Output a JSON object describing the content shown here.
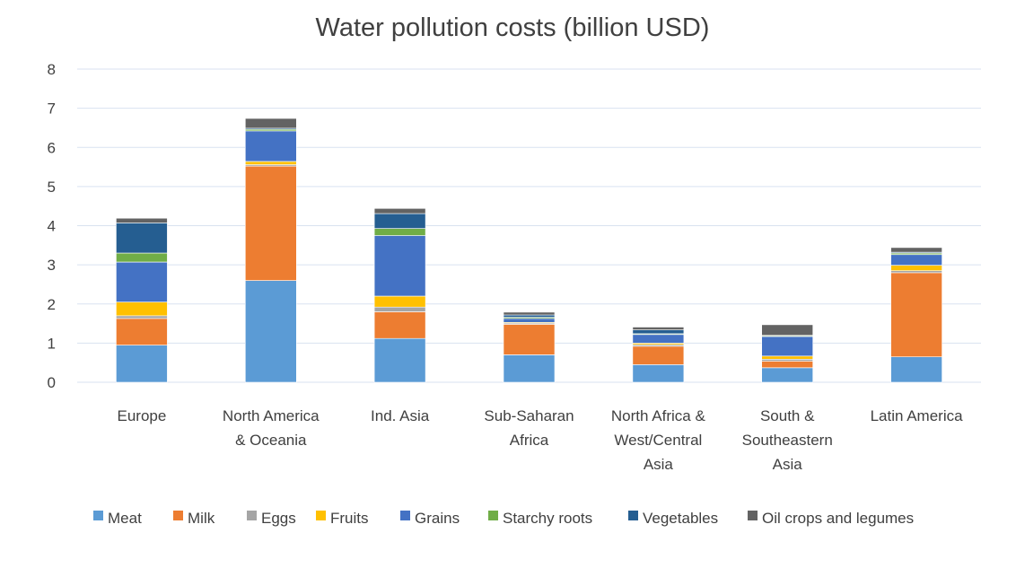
{
  "chart_data": {
    "type": "bar",
    "stacked": true,
    "title": "Water pollution costs (billion USD)",
    "xlabel": "",
    "ylabel": "",
    "ylim": [
      0,
      8
    ],
    "yticks": [
      "0",
      "1",
      "2",
      "3",
      "4",
      "5",
      "6",
      "7",
      "8"
    ],
    "grid": true,
    "legend_position": "bottom",
    "categories": [
      "Europe",
      "North America & Oceania",
      "Ind. Asia",
      "Sub-Saharan Africa",
      "North Africa & West/Central Asia",
      "South & Southeastern Asia",
      "Latin America"
    ],
    "category_lines": [
      [
        "Europe"
      ],
      [
        "North America",
        "& Oceania"
      ],
      [
        "Ind. Asia"
      ],
      [
        "Sub-Saharan",
        "Africa"
      ],
      [
        "North Africa &",
        "West/Central",
        "Asia"
      ],
      [
        "South &",
        "Southeastern",
        "Asia"
      ],
      [
        "Latin America"
      ]
    ],
    "series": [
      {
        "name": "Meat",
        "color": "#5b9bd5",
        "values": [
          0.95,
          2.6,
          1.12,
          0.7,
          0.45,
          0.37,
          0.65
        ]
      },
      {
        "name": "Milk",
        "color": "#ed7d31",
        "values": [
          0.68,
          2.92,
          0.68,
          0.78,
          0.47,
          0.17,
          2.15
        ]
      },
      {
        "name": "Eggs",
        "color": "#a5a5a5",
        "values": [
          0.07,
          0.04,
          0.12,
          0.03,
          0.04,
          0.05,
          0.05
        ]
      },
      {
        "name": "Fruits",
        "color": "#ffc000",
        "values": [
          0.35,
          0.08,
          0.28,
          0.02,
          0.04,
          0.08,
          0.14
        ]
      },
      {
        "name": "Grains",
        "color": "#4472c4",
        "values": [
          1.02,
          0.78,
          1.55,
          0.1,
          0.22,
          0.5,
          0.27
        ]
      },
      {
        "name": "Starchy roots",
        "color": "#70ad47",
        "values": [
          0.23,
          0.04,
          0.18,
          0.03,
          0.02,
          0.02,
          0.04
        ]
      },
      {
        "name": "Vegetables",
        "color": "#255e91",
        "values": [
          0.77,
          0.03,
          0.38,
          0.06,
          0.1,
          0.01,
          0.02
        ]
      },
      {
        "name": "Oil crops and legumes",
        "color": "#636363",
        "values": [
          0.12,
          0.25,
          0.13,
          0.07,
          0.07,
          0.27,
          0.12
        ]
      }
    ]
  }
}
